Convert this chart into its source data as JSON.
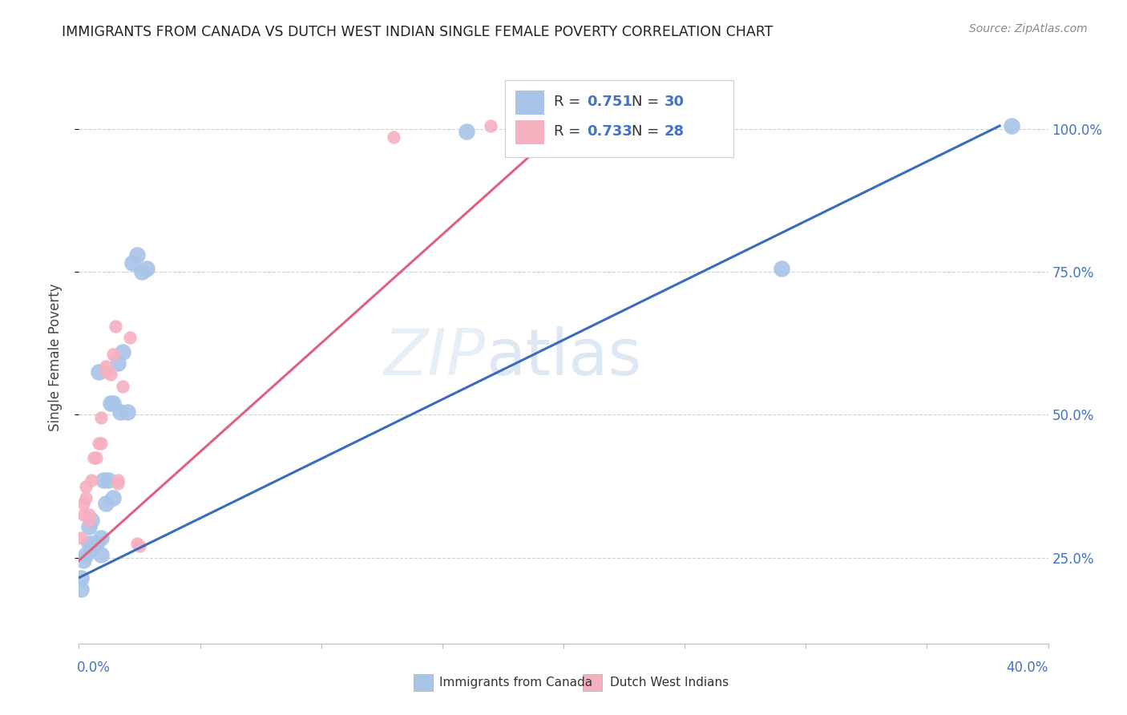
{
  "title": "IMMIGRANTS FROM CANADA VS DUTCH WEST INDIAN SINGLE FEMALE POVERTY CORRELATION CHART",
  "source": "Source: ZipAtlas.com",
  "ylabel": "Single Female Poverty",
  "canada_R": 0.751,
  "canada_N": 30,
  "dutch_R": 0.733,
  "dutch_N": 28,
  "canada_color": "#a8c4e8",
  "dutch_color": "#f5b0c0",
  "canada_line_color": "#3a6bbf",
  "dutch_line_color": "#e06080",
  "watermark_zip": "ZIP",
  "watermark_atlas": "atlas",
  "xlim": [
    0.0,
    0.4
  ],
  "ylim": [
    0.1,
    1.1
  ],
  "yticks": [
    0.25,
    0.5,
    0.75,
    1.0
  ],
  "ytick_labels": [
    "25.0%",
    "50.0%",
    "75.0%",
    "100.0%"
  ],
  "xtick_labels": [
    "0.0%",
    "40.0%"
  ],
  "canada_x": [
    0.001,
    0.001,
    0.002,
    0.003,
    0.004,
    0.004,
    0.005,
    0.005,
    0.006,
    0.007,
    0.008,
    0.009,
    0.009,
    0.01,
    0.011,
    0.012,
    0.013,
    0.014,
    0.014,
    0.016,
    0.017,
    0.018,
    0.02,
    0.022,
    0.024,
    0.026,
    0.028,
    0.16,
    0.29,
    0.385
  ],
  "canada_y": [
    0.215,
    0.195,
    0.245,
    0.255,
    0.275,
    0.305,
    0.265,
    0.315,
    0.275,
    0.275,
    0.575,
    0.285,
    0.255,
    0.385,
    0.345,
    0.385,
    0.52,
    0.52,
    0.355,
    0.59,
    0.505,
    0.61,
    0.505,
    0.765,
    0.78,
    0.75,
    0.755,
    0.995,
    0.755,
    1.005
  ],
  "dutch_x": [
    0.001,
    0.002,
    0.002,
    0.003,
    0.003,
    0.004,
    0.004,
    0.005,
    0.006,
    0.007,
    0.008,
    0.009,
    0.009,
    0.011,
    0.011,
    0.013,
    0.014,
    0.015,
    0.016,
    0.016,
    0.018,
    0.021,
    0.024,
    0.025,
    0.13,
    0.17,
    0.185,
    0.195
  ],
  "dutch_y": [
    0.285,
    0.325,
    0.345,
    0.355,
    0.375,
    0.315,
    0.325,
    0.385,
    0.425,
    0.425,
    0.45,
    0.45,
    0.495,
    0.575,
    0.585,
    0.57,
    0.605,
    0.655,
    0.385,
    0.38,
    0.55,
    0.635,
    0.275,
    0.27,
    0.985,
    1.005,
    1.005,
    1.005
  ],
  "canada_line_x": [
    0.0,
    0.38
  ],
  "canada_line_y": [
    0.215,
    1.005
  ],
  "dutch_line_x": [
    0.0,
    0.2
  ],
  "dutch_line_y": [
    0.245,
    1.005
  ]
}
